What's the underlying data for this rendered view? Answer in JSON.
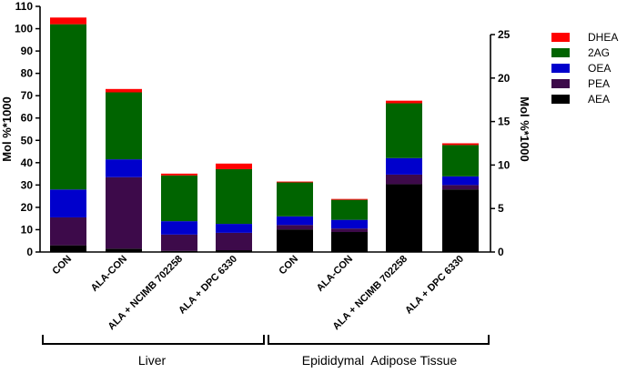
{
  "chart_data": {
    "type": "bar",
    "stacked": true,
    "title": "",
    "ylabel_left": "Mol %*1000",
    "ylabel_right": "Mol %*1000",
    "ylim_left": [
      0,
      110
    ],
    "yticks_left": [
      0,
      10,
      20,
      30,
      40,
      50,
      60,
      70,
      80,
      90,
      100,
      110
    ],
    "ylim_right": [
      0,
      25
    ],
    "yticks_right": [
      0,
      5,
      10,
      15,
      20,
      25
    ],
    "legend_position": "top-right",
    "grid": false,
    "categories": [
      "CON",
      "ALA-CON",
      "ALA + NCIMB 702258",
      "ALA + DPC 6330",
      "CON",
      "ALA-CON",
      "ALA + NCIMB 702258",
      "ALA + DPC 6330"
    ],
    "category_axis": [
      "left",
      "left",
      "left",
      "left",
      "right",
      "right",
      "right",
      "right"
    ],
    "groups": [
      {
        "label": "Liver",
        "categories": [
          0,
          1,
          2,
          3
        ],
        "axis": "left"
      },
      {
        "label": "Epididymal  Adipose Tissue",
        "categories": [
          4,
          5,
          6,
          7
        ],
        "axis": "right"
      }
    ],
    "series": [
      {
        "name": "AEA",
        "color": "#000000",
        "values": [
          3,
          1.5,
          0.5,
          0.8,
          2.6,
          2.3,
          7.8,
          7.2
        ]
      },
      {
        "name": "PEA",
        "color": "#3d0a4a",
        "values": [
          12.5,
          32,
          7.3,
          7.8,
          0.5,
          0.4,
          1.1,
          0.5
        ]
      },
      {
        "name": "OEA",
        "color": "#0000cc",
        "values": [
          12.5,
          8,
          6,
          4,
          1,
          1,
          1.9,
          1
        ]
      },
      {
        "name": "2AG",
        "color": "#006400",
        "values": [
          74,
          30,
          20.5,
          24.5,
          3.9,
          2.3,
          6.3,
          3.6
        ]
      },
      {
        "name": "DHEA",
        "color": "#ff0000",
        "values": [
          3,
          1.5,
          0.8,
          2.5,
          0.1,
          0.1,
          0.3,
          0.2
        ]
      }
    ],
    "legend_order": [
      "DHEA",
      "2AG",
      "OEA",
      "PEA",
      "AEA"
    ]
  }
}
